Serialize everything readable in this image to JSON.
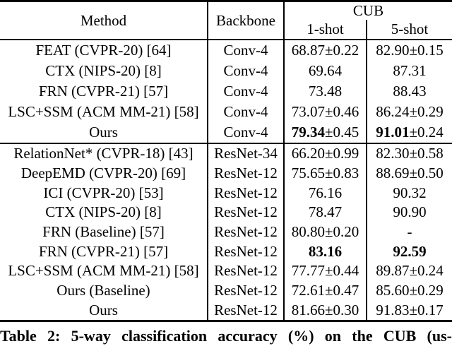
{
  "table": {
    "header": {
      "method": "Method",
      "backbone": "Backbone",
      "dataset_group": "CUB",
      "subcol_1": "1-shot",
      "subcol_2": "5-shot"
    },
    "groups": [
      {
        "rows": [
          {
            "method": "FEAT (CVPR-20) [64]",
            "backbone": "Conv-4",
            "one_shot": {
              "value": "68.87",
              "pm": "±0.22",
              "bold": false
            },
            "five_shot": {
              "value": "82.90",
              "pm": "±0.15",
              "bold": false
            }
          },
          {
            "method": "CTX (NIPS-20) [8]",
            "backbone": "Conv-4",
            "one_shot": {
              "value": "69.64",
              "pm": "",
              "bold": false
            },
            "five_shot": {
              "value": "87.31",
              "pm": "",
              "bold": false
            }
          },
          {
            "method": "FRN (CVPR-21) [57]",
            "backbone": "Conv-4",
            "one_shot": {
              "value": "73.48",
              "pm": "",
              "bold": false
            },
            "five_shot": {
              "value": "88.43",
              "pm": "",
              "bold": false
            }
          },
          {
            "method": "LSC+SSM (ACM MM-21) [58]",
            "backbone": "Conv-4",
            "one_shot": {
              "value": "73.07",
              "pm": "±0.46",
              "bold": false
            },
            "five_shot": {
              "value": "86.24",
              "pm": "±0.29",
              "bold": false
            }
          },
          {
            "method": "Ours",
            "backbone": "Conv-4",
            "one_shot": {
              "value": "79.34",
              "pm": "±0.45",
              "bold": true
            },
            "five_shot": {
              "value": "91.01",
              "pm": "±0.24",
              "bold": true
            }
          }
        ]
      },
      {
        "rows": [
          {
            "method": "RelationNet* (CVPR-18) [43]",
            "backbone": "ResNet-34",
            "one_shot": {
              "value": "66.20",
              "pm": "±0.99",
              "bold": false
            },
            "five_shot": {
              "value": "82.30",
              "pm": "±0.58",
              "bold": false
            }
          },
          {
            "method": "DeepEMD (CVPR-20) [69]",
            "backbone": "ResNet-12",
            "one_shot": {
              "value": "75.65",
              "pm": "±0.83",
              "bold": false
            },
            "five_shot": {
              "value": "88.69",
              "pm": "±0.50",
              "bold": false
            }
          },
          {
            "method": "ICI (CVPR-20) [53]",
            "backbone": "ResNet-12",
            "one_shot": {
              "value": "76.16",
              "pm": "",
              "bold": false
            },
            "five_shot": {
              "value": "90.32",
              "pm": "",
              "bold": false
            }
          },
          {
            "method": "CTX (NIPS-20) [8]",
            "backbone": "ResNet-12",
            "one_shot": {
              "value": "78.47",
              "pm": "",
              "bold": false
            },
            "five_shot": {
              "value": "90.90",
              "pm": "",
              "bold": false
            }
          },
          {
            "method": "FRN (Baseline) [57]",
            "backbone": "ResNet-12",
            "one_shot": {
              "value": "80.80",
              "pm": "±0.20",
              "bold": false
            },
            "five_shot": {
              "value": "-",
              "pm": "",
              "bold": false
            }
          },
          {
            "method": "FRN (CVPR-21) [57]",
            "backbone": "ResNet-12",
            "one_shot": {
              "value": "83.16",
              "pm": "",
              "bold": true
            },
            "five_shot": {
              "value": "92.59",
              "pm": "",
              "bold": true
            }
          },
          {
            "method": "LSC+SSM (ACM MM-21) [58]",
            "backbone": "ResNet-12",
            "one_shot": {
              "value": "77.77",
              "pm": "±0.44",
              "bold": false
            },
            "five_shot": {
              "value": "89.87",
              "pm": "±0.24",
              "bold": false
            }
          },
          {
            "method": "Ours (Baseline)",
            "backbone": "ResNet-12",
            "one_shot": {
              "value": "72.61",
              "pm": "±0.47",
              "bold": false
            },
            "five_shot": {
              "value": "85.60",
              "pm": "±0.29",
              "bold": false
            }
          },
          {
            "method": "Ours",
            "backbone": "ResNet-12",
            "one_shot": {
              "value": "81.66",
              "pm": "±0.30",
              "bold": false
            },
            "five_shot": {
              "value": "91.83",
              "pm": "±0.17",
              "bold": false
            }
          }
        ]
      }
    ]
  },
  "caption": "Table 2: 5-way classification accuracy (%) on the CUB (us-"
}
